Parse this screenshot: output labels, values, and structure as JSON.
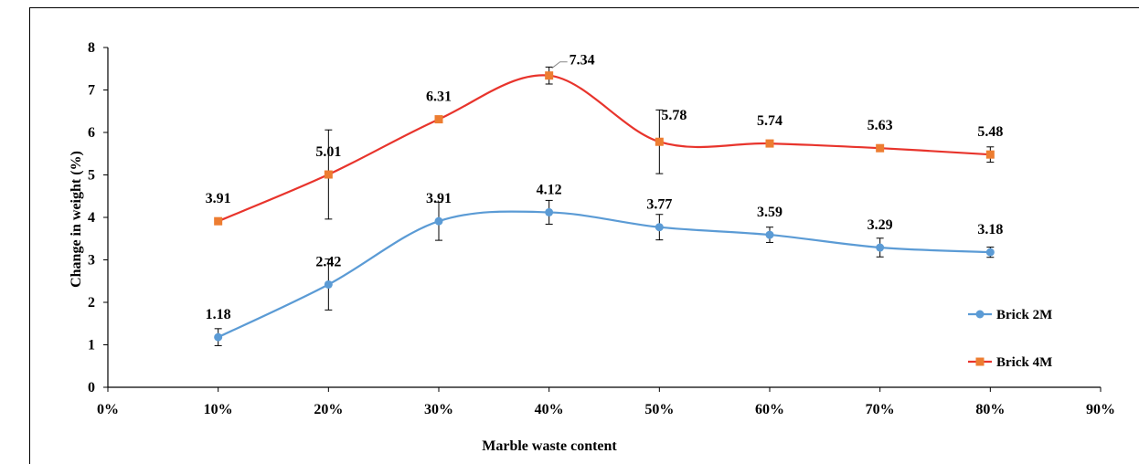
{
  "chart_data": {
    "type": "line",
    "xlabel": "Marble waste content",
    "ylabel": "Change in weight (%)",
    "x_ticks": [
      "0%",
      "10%",
      "20%",
      "30%",
      "40%",
      "50%",
      "60%",
      "70%",
      "80%",
      "90%"
    ],
    "y_ticks": [
      "0",
      "1",
      "2",
      "3",
      "4",
      "5",
      "6",
      "7",
      "8"
    ],
    "xlim": [
      0,
      90
    ],
    "ylim": [
      0,
      8
    ],
    "grid": false,
    "legend_position": "right",
    "x": [
      10,
      20,
      30,
      40,
      50,
      60,
      70,
      80
    ],
    "series": [
      {
        "name": "Brick 2M",
        "color": "#5b9bd5",
        "marker": "circle",
        "values": [
          1.18,
          2.42,
          3.91,
          4.12,
          3.77,
          3.59,
          3.29,
          3.18
        ],
        "labels": [
          "1.18",
          "2.42",
          "3.91",
          "4.12",
          "3.77",
          "3.59",
          "3.29",
          "3.18"
        ],
        "error": [
          0.2,
          0.6,
          0.45,
          0.28,
          0.3,
          0.18,
          0.22,
          0.12
        ]
      },
      {
        "name": "Brick 4M",
        "color": "#ed7d31",
        "line_color": "#e8342c",
        "marker": "square",
        "values": [
          3.91,
          5.01,
          6.31,
          7.34,
          5.78,
          5.74,
          5.63,
          5.48
        ],
        "labels": [
          "3.91",
          "5.01",
          "6.31",
          "7.34",
          "5.78",
          "5.74",
          "5.63",
          "5.48"
        ],
        "error": [
          0.0,
          1.05,
          0.0,
          0.2,
          0.75,
          0.0,
          0.0,
          0.18
        ]
      }
    ]
  }
}
